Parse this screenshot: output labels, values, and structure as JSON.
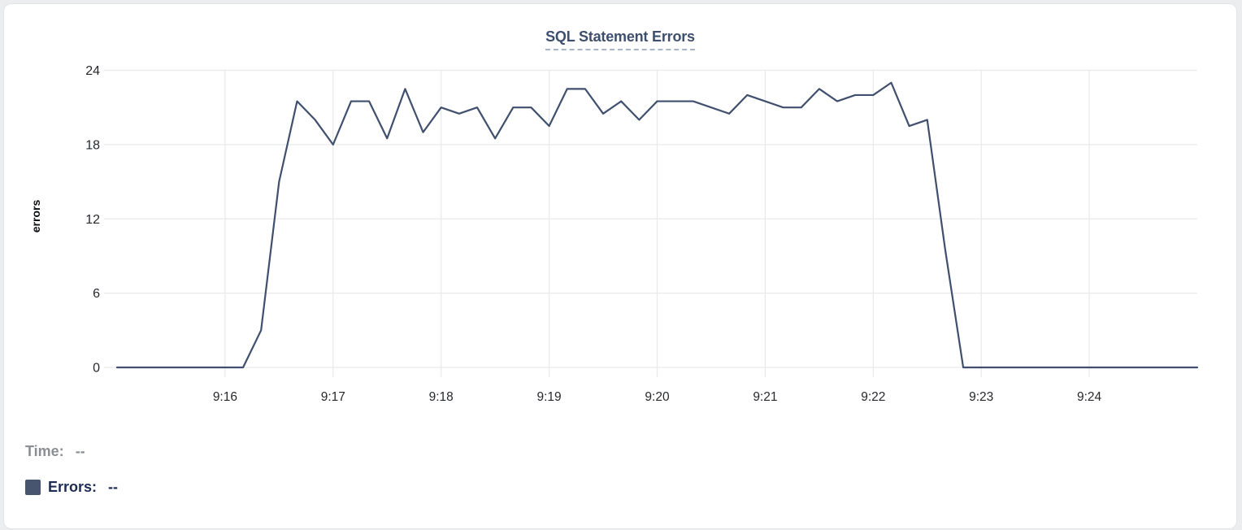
{
  "chart": {
    "title": "SQL Statement Errors",
    "tooltip_readout": {
      "time_label": "Time:",
      "time_value": "--",
      "series_label": "Errors:",
      "series_value": "--",
      "swatch_color": "#47566e"
    }
  },
  "chart_data": {
    "type": "line",
    "title": "SQL Statement Errors",
    "xlabel": "",
    "ylabel": "errors",
    "legend_entries": [
      "Errors"
    ],
    "grid": true,
    "y_ticks": [
      0,
      6,
      12,
      18,
      24
    ],
    "ylim": [
      0,
      24
    ],
    "x_ticks": [
      "9:16",
      "9:17",
      "9:18",
      "9:19",
      "9:20",
      "9:21",
      "9:22",
      "9:23",
      "9:24"
    ],
    "x_range": [
      "9:15:00",
      "9:25:00"
    ],
    "line_color": "#3f4f6d",
    "grid_color": "#e9eaec",
    "tick_color": "#26282c",
    "times": [
      "9:15:00",
      "9:15:10",
      "9:15:20",
      "9:15:30",
      "9:15:40",
      "9:15:50",
      "9:16:00",
      "9:16:10",
      "9:16:20",
      "9:16:30",
      "9:16:40",
      "9:16:50",
      "9:17:00",
      "9:17:10",
      "9:17:20",
      "9:17:30",
      "9:17:40",
      "9:17:50",
      "9:18:00",
      "9:18:10",
      "9:18:20",
      "9:18:30",
      "9:18:40",
      "9:18:50",
      "9:19:00",
      "9:19:10",
      "9:19:20",
      "9:19:30",
      "9:19:40",
      "9:19:50",
      "9:20:00",
      "9:20:10",
      "9:20:20",
      "9:20:30",
      "9:20:40",
      "9:20:50",
      "9:21:00",
      "9:21:10",
      "9:21:20",
      "9:21:30",
      "9:21:40",
      "9:21:50",
      "9:22:00",
      "9:22:10",
      "9:22:20",
      "9:22:30",
      "9:22:40",
      "9:22:50",
      "9:23:00",
      "9:23:10",
      "9:23:20",
      "9:23:30",
      "9:23:40",
      "9:23:50",
      "9:24:00",
      "9:24:10",
      "9:24:20",
      "9:24:30",
      "9:24:40",
      "9:24:50",
      "9:25:00"
    ],
    "values": [
      0,
      0,
      0,
      0,
      0,
      0,
      0,
      0,
      3,
      15,
      21.5,
      20,
      18,
      21.5,
      21.5,
      18.5,
      22.5,
      19,
      21,
      20.5,
      21,
      18.5,
      21,
      21,
      19.5,
      22.5,
      22.5,
      20.5,
      21.5,
      20,
      21.5,
      21.5,
      21.5,
      21,
      20.5,
      22,
      21.5,
      21,
      21,
      22.5,
      21.5,
      22,
      22,
      23,
      19.5,
      20,
      9.5,
      0,
      0,
      0,
      0,
      0,
      0,
      0,
      0,
      0,
      0,
      0,
      0,
      0,
      0
    ]
  }
}
